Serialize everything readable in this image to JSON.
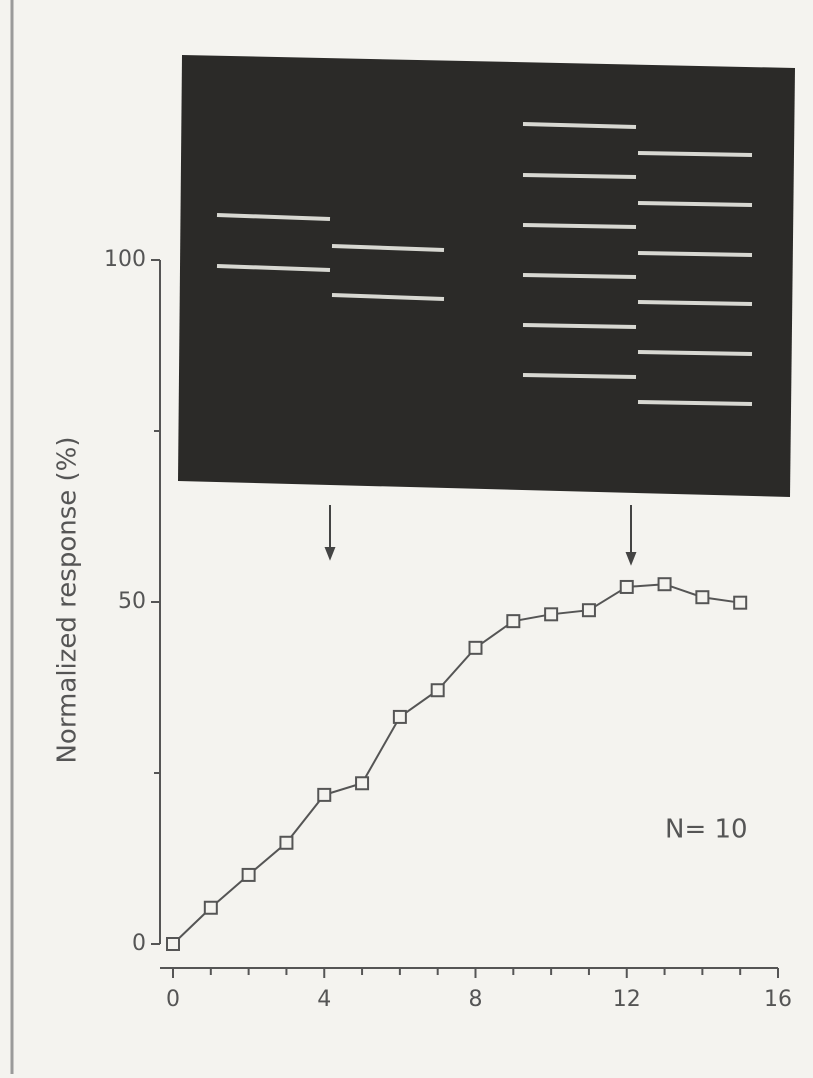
{
  "chart_data": {
    "type": "line",
    "y_axis_label": "Normalized response (%)",
    "annotation": "N= 10",
    "x": [
      0,
      1,
      2,
      3,
      4,
      5,
      6,
      7,
      8,
      9,
      10,
      11,
      12,
      13,
      14,
      15
    ],
    "series": [
      {
        "color": "#555555",
        "values": [
          0,
          5.3,
          10.1,
          14.8,
          21.8,
          23.5,
          33.2,
          37.1,
          43.3,
          47.2,
          48.2,
          48.8,
          52.2,
          52.6,
          50.7,
          49.9
        ]
      }
    ],
    "xlim": [
      0,
      16
    ],
    "xticks": [
      0,
      4,
      8,
      12,
      16
    ],
    "x_minor_ticks": [
      1,
      2,
      3,
      5,
      6,
      7,
      9,
      10,
      11,
      13,
      14,
      15
    ],
    "ylim": [
      0,
      100
    ],
    "yticks": [
      0,
      50,
      100
    ],
    "y_minor_ticks": [
      25,
      75
    ],
    "marker": "square"
  }
}
